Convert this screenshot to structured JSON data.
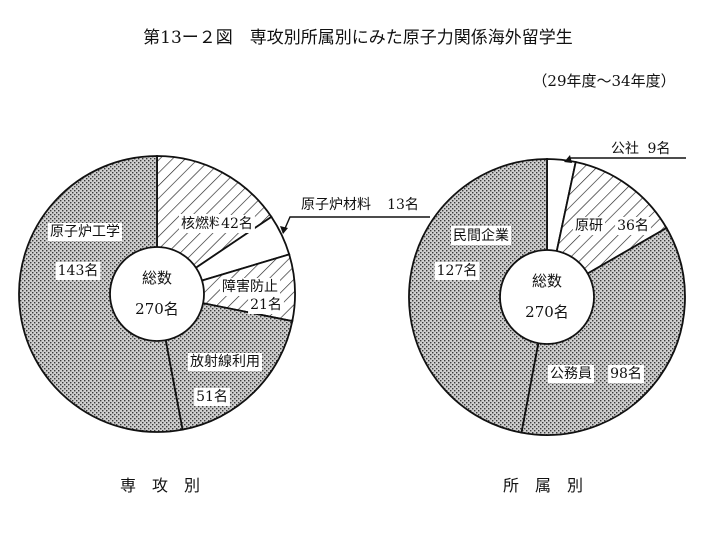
{
  "title": "第13ー２図　専攻別所属別にみた原子力関係海外留学生",
  "period": "（29年度〜34年度）",
  "chart_data": [
    {
      "type": "pie",
      "style": "donut",
      "caption": "専　攻　別",
      "center_label": "総数",
      "center_value": "270名",
      "total": 270,
      "slices": [
        {
          "name": "核燃料",
          "value_label": "42名",
          "value": 42,
          "pattern": "hatch"
        },
        {
          "name": "原子炉材料",
          "value_label": "13名",
          "value": 13,
          "pattern": "blank"
        },
        {
          "name": "障害防止",
          "value_label": "21名",
          "value": 21,
          "pattern": "hatch"
        },
        {
          "name": "放射線利用",
          "value_label": "51名",
          "value": 51,
          "pattern": "dots"
        },
        {
          "name": "原子炉工学",
          "value_label": "143名",
          "value": 143,
          "pattern": "dots"
        }
      ]
    },
    {
      "type": "pie",
      "style": "donut",
      "caption": "所　属　別",
      "center_label": "総数",
      "center_value": "270名",
      "total": 270,
      "slices": [
        {
          "name": "公社",
          "value_label": "9名",
          "value": 9,
          "pattern": "blank"
        },
        {
          "name": "原研",
          "value_label": "36名",
          "value": 36,
          "pattern": "hatch"
        },
        {
          "name": "公務員",
          "value_label": "98名",
          "value": 98,
          "pattern": "dots"
        },
        {
          "name": "民間企業",
          "value_label": "127名",
          "value": 127,
          "pattern": "dots"
        }
      ]
    }
  ]
}
